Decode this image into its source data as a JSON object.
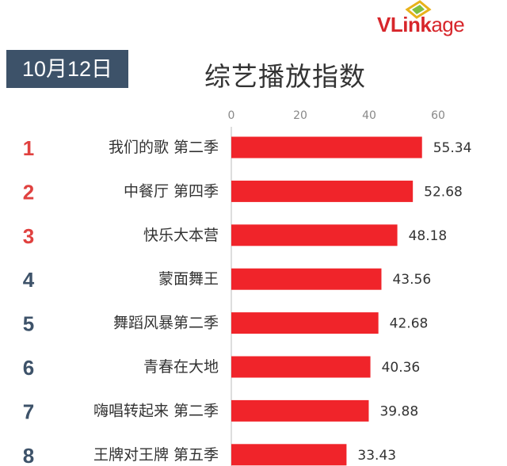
{
  "logo": {
    "brand": "VLinkage",
    "brand_prefix": "VL",
    "brand_middle": "ink",
    "brand_suffix": "age"
  },
  "date_badge": "10月12日",
  "colors": {
    "bar": "#f0242a",
    "rank_top": "#e0413f",
    "rank_rest": "#3d5269",
    "badge": "#3d5269"
  },
  "chart_data": {
    "type": "bar",
    "orientation": "horizontal",
    "title": "综艺播放指数",
    "xlim": [
      0,
      60
    ],
    "x_ticks": [
      0,
      20,
      40,
      60
    ],
    "ranks": [
      "1",
      "2",
      "3",
      "4",
      "5",
      "6",
      "7",
      "8"
    ],
    "categories": [
      "我们的歌 第二季",
      "中餐厅 第四季",
      "快乐大本营",
      "蒙面舞王",
      "舞蹈风暴第二季",
      "青春在大地",
      "嗨唱转起来 第二季",
      "王牌对王牌 第五季"
    ],
    "values": [
      55.34,
      52.68,
      48.18,
      43.56,
      42.68,
      40.36,
      39.88,
      33.43
    ],
    "data_labels": [
      "55.34",
      "52.68",
      "48.18",
      "43.56",
      "42.68",
      "40.36",
      "39.88",
      "33.43"
    ]
  }
}
